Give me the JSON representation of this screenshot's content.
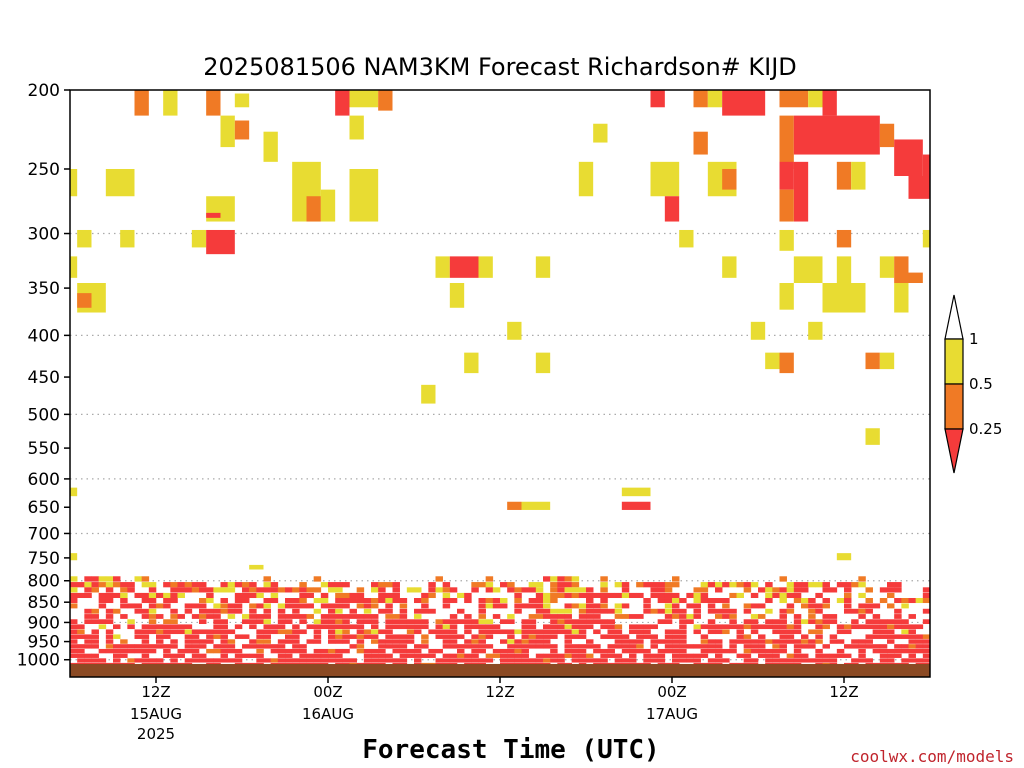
{
  "title": "2025081506 NAM3KM Forecast Richardson# KIJD",
  "xlabel": "Forecast Time (UTC)",
  "credit": "coolwx.com/models",
  "colors": {
    "low": "#f53b3b",
    "mid": "#f07a25",
    "high": "#e8dc32",
    "ground": "#8b4a24",
    "grid": "#aaaaaa"
  },
  "chart_data": {
    "type": "heatmap",
    "title": "2025081506 NAM3KM Forecast Richardson# KIJD",
    "xlabel": "Forecast Time (UTC)",
    "ylabel": "",
    "y_axis": {
      "scale": "log-pressure",
      "inverted": true,
      "range_hPa": [
        1050,
        200
      ]
    },
    "y_ticks": [
      {
        "value": 200,
        "label": "200",
        "grid": false
      },
      {
        "value": 250,
        "label": "250",
        "grid": false
      },
      {
        "value": 300,
        "label": "300",
        "grid": true
      },
      {
        "value": 350,
        "label": "350",
        "grid": false
      },
      {
        "value": 400,
        "label": "400",
        "grid": true
      },
      {
        "value": 450,
        "label": "450",
        "grid": false
      },
      {
        "value": 500,
        "label": "500",
        "grid": true
      },
      {
        "value": 550,
        "label": "550",
        "grid": false
      },
      {
        "value": 600,
        "label": "600",
        "grid": true
      },
      {
        "value": 650,
        "label": "650",
        "grid": false
      },
      {
        "value": 700,
        "label": "700",
        "grid": true
      },
      {
        "value": 750,
        "label": "750",
        "grid": false
      },
      {
        "value": 800,
        "label": "800",
        "grid": true
      },
      {
        "value": 850,
        "label": "850",
        "grid": false
      },
      {
        "value": 900,
        "label": "900",
        "grid": true
      },
      {
        "value": 950,
        "label": "950",
        "grid": false
      },
      {
        "value": 1000,
        "label": "1000",
        "grid": true
      }
    ],
    "x_axis": {
      "unit": "forecast hour",
      "range": [
        0,
        60
      ]
    },
    "x_ticks": [
      {
        "hour": 6,
        "label": "12Z",
        "date": "15AUG",
        "year": "2025"
      },
      {
        "hour": 18,
        "label": "00Z",
        "date": "16AUG",
        "year": ""
      },
      {
        "hour": 30,
        "label": "12Z",
        "date": "",
        "year": ""
      },
      {
        "hour": 42,
        "label": "00Z",
        "date": "17AUG",
        "year": ""
      },
      {
        "hour": 54,
        "label": "12Z",
        "date": "",
        "year": ""
      }
    ],
    "legend": {
      "placement": "right",
      "labels": [
        "1",
        "0.5",
        "0.25"
      ],
      "bins": [
        {
          "range": "< 0.25",
          "color": "#f53b3b"
        },
        {
          "range": "0.25 - 0.5",
          "color": "#f07a25"
        },
        {
          "range": "0.5 - 1",
          "color": "#e8dc32"
        },
        {
          "range": "> 1",
          "color": "#ffffff"
        }
      ]
    },
    "cells": [
      [
        4.5,
        5.5,
        200,
        215,
        "mid"
      ],
      [
        6.5,
        7.5,
        200,
        215,
        "high"
      ],
      [
        9.5,
        10.5,
        200,
        215,
        "mid"
      ],
      [
        11.5,
        12.5,
        202,
        210,
        "high"
      ],
      [
        18.5,
        19.5,
        200,
        215,
        "low"
      ],
      [
        19.5,
        21.5,
        200,
        210,
        "high"
      ],
      [
        21.5,
        22.5,
        200,
        212,
        "mid"
      ],
      [
        40.5,
        41.5,
        200,
        210,
        "low"
      ],
      [
        43.5,
        44.5,
        200,
        210,
        "mid"
      ],
      [
        44.5,
        45.5,
        200,
        210,
        "high"
      ],
      [
        45.5,
        48.5,
        200,
        215,
        "low"
      ],
      [
        49.5,
        51.5,
        200,
        210,
        "mid"
      ],
      [
        51.5,
        52.5,
        200,
        210,
        "high"
      ],
      [
        52.5,
        53.5,
        200,
        215,
        "low"
      ],
      [
        10.5,
        11.5,
        215,
        235,
        "high"
      ],
      [
        11.5,
        12.5,
        218,
        230,
        "mid"
      ],
      [
        13.5,
        14.5,
        225,
        245,
        "high"
      ],
      [
        19.5,
        20.5,
        215,
        230,
        "high"
      ],
      [
        36.5,
        37.5,
        220,
        232,
        "high"
      ],
      [
        43.5,
        44.5,
        225,
        240,
        "mid"
      ],
      [
        49.5,
        50.5,
        215,
        250,
        "mid"
      ],
      [
        50.5,
        56.5,
        215,
        240,
        "low"
      ],
      [
        56.5,
        57.5,
        220,
        235,
        "mid"
      ],
      [
        57.5,
        59.5,
        230,
        255,
        "low"
      ],
      [
        59.5,
        60,
        240,
        255,
        "low"
      ],
      [
        0,
        0.5,
        250,
        270,
        "high"
      ],
      [
        2.5,
        4.5,
        250,
        270,
        "high"
      ],
      [
        15.5,
        17.5,
        245,
        290,
        "high"
      ],
      [
        19.5,
        21.5,
        250,
        290,
        "high"
      ],
      [
        35.5,
        36.5,
        245,
        270,
        "high"
      ],
      [
        40.5,
        42.5,
        245,
        270,
        "high"
      ],
      [
        44.5,
        46.5,
        245,
        270,
        "high"
      ],
      [
        45.5,
        46.5,
        250,
        265,
        "mid"
      ],
      [
        49.5,
        50.5,
        245,
        265,
        "low"
      ],
      [
        50.5,
        51.5,
        245,
        290,
        "low"
      ],
      [
        53.5,
        54.5,
        245,
        265,
        "mid"
      ],
      [
        54.5,
        55.5,
        245,
        265,
        "high"
      ],
      [
        58.5,
        60,
        255,
        272,
        "low"
      ],
      [
        9.5,
        11.5,
        270,
        290,
        "high"
      ],
      [
        16.5,
        17.5,
        270,
        290,
        "mid"
      ],
      [
        17.5,
        18.5,
        265,
        290,
        "high"
      ],
      [
        41.5,
        42.5,
        270,
        290,
        "low"
      ],
      [
        49.5,
        50.5,
        265,
        290,
        "mid"
      ],
      [
        9.5,
        10.5,
        283,
        287,
        "low"
      ],
      [
        0.5,
        1.5,
        297,
        312,
        "high"
      ],
      [
        3.5,
        4.5,
        297,
        312,
        "high"
      ],
      [
        8.5,
        9.5,
        297,
        312,
        "high"
      ],
      [
        9.5,
        11.5,
        297,
        318,
        "low"
      ],
      [
        42.5,
        43.5,
        297,
        312,
        "high"
      ],
      [
        49.5,
        50.5,
        297,
        315,
        "high"
      ],
      [
        53.5,
        54.5,
        297,
        312,
        "mid"
      ],
      [
        59.5,
        60,
        297,
        312,
        "high"
      ],
      [
        0,
        0.5,
        320,
        340,
        "high"
      ],
      [
        25.5,
        26.5,
        320,
        340,
        "high"
      ],
      [
        26.5,
        28.5,
        320,
        340,
        "low"
      ],
      [
        28.5,
        29.5,
        320,
        340,
        "high"
      ],
      [
        32.5,
        33.5,
        320,
        340,
        "high"
      ],
      [
        45.5,
        46.5,
        320,
        340,
        "high"
      ],
      [
        50.5,
        52.5,
        320,
        345,
        "high"
      ],
      [
        53.5,
        54.5,
        320,
        345,
        "high"
      ],
      [
        56.5,
        57.5,
        320,
        340,
        "high"
      ],
      [
        57.5,
        58.5,
        320,
        345,
        "mid"
      ],
      [
        58.5,
        59.5,
        335,
        345,
        "mid"
      ],
      [
        0.5,
        2.5,
        345,
        375,
        "high"
      ],
      [
        0.5,
        1.5,
        355,
        370,
        "mid"
      ],
      [
        26.5,
        27.5,
        345,
        370,
        "high"
      ],
      [
        49.5,
        50.5,
        345,
        372,
        "high"
      ],
      [
        52.5,
        55.5,
        345,
        375,
        "high"
      ],
      [
        57.5,
        58.5,
        345,
        375,
        "high"
      ],
      [
        30.5,
        31.5,
        385,
        405,
        "high"
      ],
      [
        47.5,
        48.5,
        385,
        405,
        "high"
      ],
      [
        51.5,
        52.5,
        385,
        405,
        "high"
      ],
      [
        27.5,
        28.5,
        420,
        445,
        "high"
      ],
      [
        32.5,
        33.5,
        420,
        445,
        "high"
      ],
      [
        48.5,
        49.5,
        420,
        440,
        "high"
      ],
      [
        49.5,
        50.5,
        420,
        445,
        "mid"
      ],
      [
        55.5,
        56.5,
        420,
        440,
        "mid"
      ],
      [
        56.5,
        57.5,
        420,
        440,
        "high"
      ],
      [
        24.5,
        25.5,
        460,
        485,
        "high"
      ],
      [
        55.5,
        56.5,
        520,
        545,
        "high"
      ],
      [
        0,
        0.5,
        615,
        630,
        "high"
      ],
      [
        38.5,
        40.5,
        615,
        630,
        "high"
      ],
      [
        38.5,
        40.5,
        640,
        655,
        "low"
      ],
      [
        30.5,
        31.5,
        640,
        655,
        "mid"
      ],
      [
        31.5,
        33.5,
        640,
        655,
        "high"
      ],
      [
        0,
        0.5,
        740,
        755,
        "high"
      ],
      [
        12.5,
        13.5,
        765,
        775,
        "high"
      ],
      [
        53.5,
        54.5,
        740,
        755,
        "high"
      ]
    ],
    "boundary_layer_rows": [
      [
        790,
        "mid"
      ],
      [
        803,
        "high"
      ],
      [
        815,
        "mid"
      ],
      [
        828,
        "low"
      ],
      [
        840,
        "high"
      ],
      [
        853,
        "low"
      ],
      [
        866,
        "mid"
      ],
      [
        879,
        "low"
      ],
      [
        892,
        "high"
      ],
      [
        905,
        "low"
      ],
      [
        918,
        "mid"
      ],
      [
        931,
        "low"
      ],
      [
        944,
        "high"
      ],
      [
        957,
        "low"
      ],
      [
        970,
        "mid"
      ],
      [
        983,
        "low"
      ],
      [
        996,
        "high"
      ],
      [
        1009,
        "low"
      ]
    ]
  }
}
